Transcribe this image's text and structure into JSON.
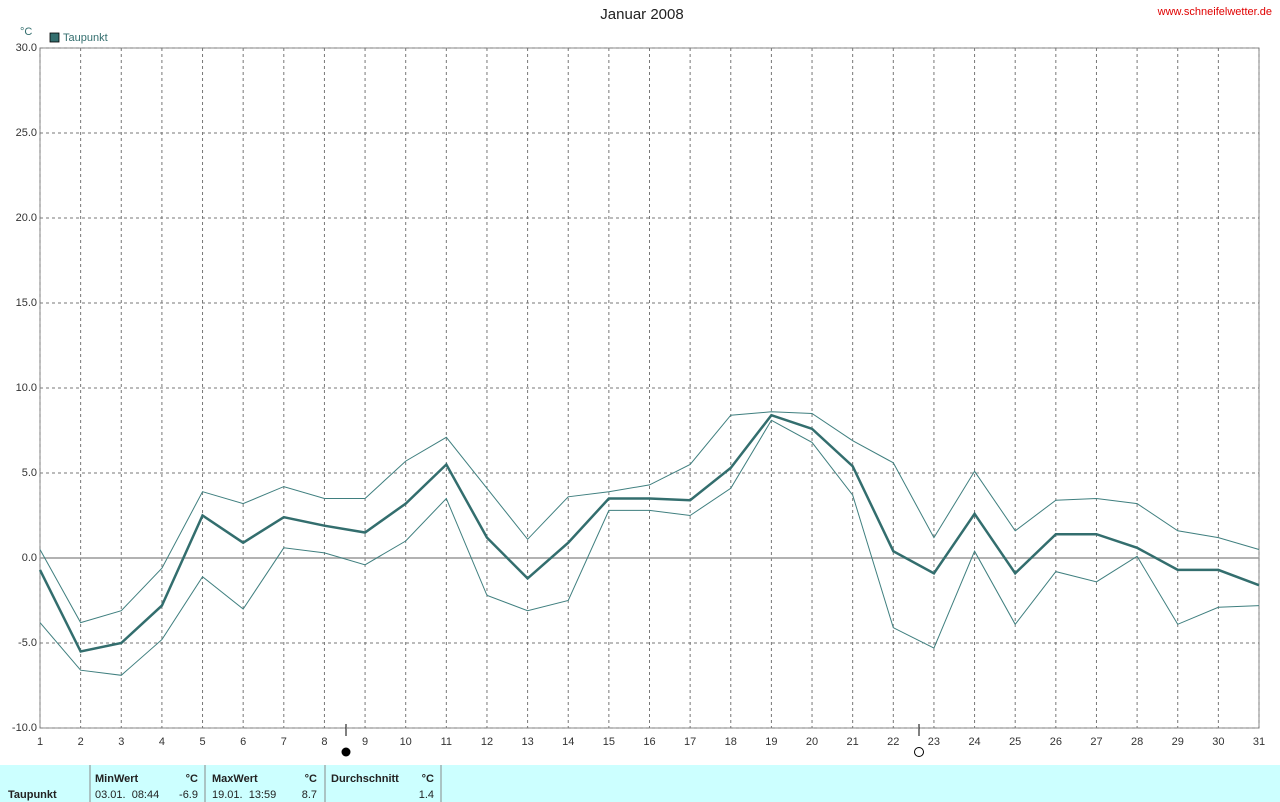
{
  "chart_data": {
    "type": "line",
    "title": "Januar 2008",
    "source": "www.schneifelwetter.de",
    "ylabel": "°C",
    "x": [
      1,
      2,
      3,
      4,
      5,
      6,
      7,
      8,
      9,
      10,
      11,
      12,
      13,
      14,
      15,
      16,
      17,
      18,
      19,
      20,
      21,
      22,
      23,
      24,
      25,
      26,
      27,
      28,
      29,
      30,
      31
    ],
    "xlim": [
      1,
      31
    ],
    "xticks": [
      1,
      2,
      3,
      4,
      5,
      6,
      7,
      8,
      9,
      10,
      11,
      12,
      13,
      14,
      15,
      16,
      17,
      18,
      19,
      20,
      21,
      22,
      23,
      24,
      25,
      26,
      27,
      28,
      29,
      30,
      31
    ],
    "ylim": [
      -10,
      30
    ],
    "yticks": [
      {
        "value": -10,
        "label": "-10.0"
      },
      {
        "value": -5,
        "label": "-5.0"
      },
      {
        "value": 0,
        "label": "0.0"
      },
      {
        "value": 5,
        "label": "5.0"
      },
      {
        "value": 10,
        "label": "10.0"
      },
      {
        "value": 15,
        "label": "15.0"
      },
      {
        "value": 20,
        "label": "20.0"
      },
      {
        "value": 25,
        "label": "25.0"
      },
      {
        "value": 30,
        "label": "30.0"
      }
    ],
    "grid": true,
    "series": [
      {
        "name": "Taupunkt",
        "color": "#336e6e",
        "values": [
          -0.7,
          -5.5,
          -5.0,
          -2.8,
          2.5,
          0.9,
          2.4,
          1.9,
          1.5,
          3.2,
          5.5,
          1.2,
          -1.2,
          0.9,
          3.5,
          3.5,
          3.4,
          5.3,
          8.4,
          7.6,
          5.4,
          0.4,
          -0.9,
          2.6,
          -0.9,
          1.4,
          1.4,
          0.6,
          -0.7,
          -0.7,
          -1.6
        ]
      },
      {
        "color": "#3f7f7f",
        "values": [
          0.5,
          -3.8,
          -3.1,
          -0.6,
          3.9,
          3.2,
          4.2,
          3.5,
          3.5,
          5.7,
          7.1,
          4.1,
          1.1,
          3.6,
          3.9,
          4.3,
          5.5,
          8.4,
          8.6,
          8.5,
          6.9,
          5.6,
          1.2,
          5.1,
          1.6,
          3.4,
          3.5,
          3.2,
          1.6,
          1.2,
          0.5
        ]
      },
      {
        "color": "#3f7f7f",
        "values": [
          -3.8,
          -6.6,
          -6.9,
          -4.8,
          -1.1,
          -3.0,
          0.6,
          0.3,
          -0.4,
          1.0,
          3.5,
          -2.2,
          -3.1,
          -2.5,
          2.8,
          2.8,
          2.5,
          4.1,
          8.1,
          6.8,
          3.7,
          -4.1,
          -5.3,
          0.4,
          -3.9,
          -0.8,
          -1.4,
          0.1,
          -3.9,
          -2.9,
          -2.8
        ]
      }
    ]
  },
  "stats": {
    "row_label": "Taupunkt",
    "columns": [
      {
        "name": "MinWert",
        "unit": "°C",
        "time": "03.01.  08:44",
        "value": -6.9
      },
      {
        "name": "MaxWert",
        "unit": "°C",
        "time": "19.01.  13:59",
        "value": 8.7
      },
      {
        "name": "Durchschnitt",
        "unit": "°C",
        "value": 1.4
      }
    ]
  }
}
